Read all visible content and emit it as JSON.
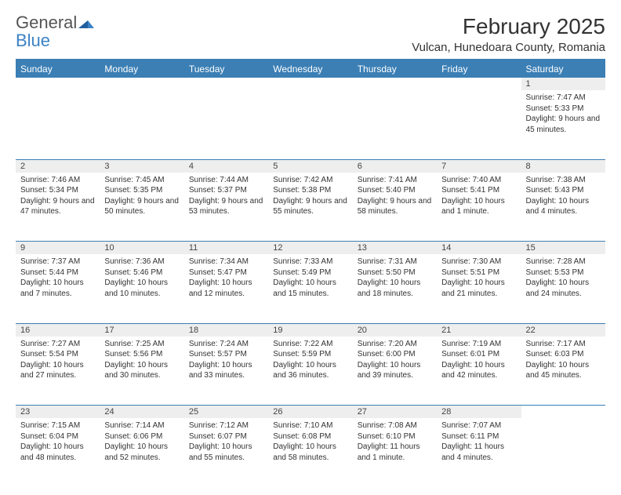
{
  "logo": {
    "word1": "General",
    "word2": "Blue"
  },
  "title": "February 2025",
  "location": "Vulcan, Hunedoara County, Romania",
  "colors": {
    "header_bg": "#3b7fb5",
    "header_text": "#ffffff",
    "line": "#3b7fb5",
    "daynum_bg": "#eeeeee",
    "text": "#333333",
    "logo_gray": "#555555",
    "logo_blue": "#3b82c4",
    "page_bg": "#ffffff"
  },
  "fonts": {
    "title_size_pt": 21,
    "location_size_pt": 11,
    "dayheader_size_pt": 9,
    "daynum_size_pt": 8,
    "body_size_pt": 7.5
  },
  "day_headers": [
    "Sunday",
    "Monday",
    "Tuesday",
    "Wednesday",
    "Thursday",
    "Friday",
    "Saturday"
  ],
  "weeks": [
    {
      "nums": [
        "",
        "",
        "",
        "",
        "",
        "",
        "1"
      ],
      "cells": [
        "",
        "",
        "",
        "",
        "",
        "",
        "Sunrise: 7:47 AM\nSunset: 5:33 PM\nDaylight: 9 hours and 45 minutes."
      ]
    },
    {
      "nums": [
        "2",
        "3",
        "4",
        "5",
        "6",
        "7",
        "8"
      ],
      "cells": [
        "Sunrise: 7:46 AM\nSunset: 5:34 PM\nDaylight: 9 hours and 47 minutes.",
        "Sunrise: 7:45 AM\nSunset: 5:35 PM\nDaylight: 9 hours and 50 minutes.",
        "Sunrise: 7:44 AM\nSunset: 5:37 PM\nDaylight: 9 hours and 53 minutes.",
        "Sunrise: 7:42 AM\nSunset: 5:38 PM\nDaylight: 9 hours and 55 minutes.",
        "Sunrise: 7:41 AM\nSunset: 5:40 PM\nDaylight: 9 hours and 58 minutes.",
        "Sunrise: 7:40 AM\nSunset: 5:41 PM\nDaylight: 10 hours and 1 minute.",
        "Sunrise: 7:38 AM\nSunset: 5:43 PM\nDaylight: 10 hours and 4 minutes."
      ]
    },
    {
      "nums": [
        "9",
        "10",
        "11",
        "12",
        "13",
        "14",
        "15"
      ],
      "cells": [
        "Sunrise: 7:37 AM\nSunset: 5:44 PM\nDaylight: 10 hours and 7 minutes.",
        "Sunrise: 7:36 AM\nSunset: 5:46 PM\nDaylight: 10 hours and 10 minutes.",
        "Sunrise: 7:34 AM\nSunset: 5:47 PM\nDaylight: 10 hours and 12 minutes.",
        "Sunrise: 7:33 AM\nSunset: 5:49 PM\nDaylight: 10 hours and 15 minutes.",
        "Sunrise: 7:31 AM\nSunset: 5:50 PM\nDaylight: 10 hours and 18 minutes.",
        "Sunrise: 7:30 AM\nSunset: 5:51 PM\nDaylight: 10 hours and 21 minutes.",
        "Sunrise: 7:28 AM\nSunset: 5:53 PM\nDaylight: 10 hours and 24 minutes."
      ]
    },
    {
      "nums": [
        "16",
        "17",
        "18",
        "19",
        "20",
        "21",
        "22"
      ],
      "cells": [
        "Sunrise: 7:27 AM\nSunset: 5:54 PM\nDaylight: 10 hours and 27 minutes.",
        "Sunrise: 7:25 AM\nSunset: 5:56 PM\nDaylight: 10 hours and 30 minutes.",
        "Sunrise: 7:24 AM\nSunset: 5:57 PM\nDaylight: 10 hours and 33 minutes.",
        "Sunrise: 7:22 AM\nSunset: 5:59 PM\nDaylight: 10 hours and 36 minutes.",
        "Sunrise: 7:20 AM\nSunset: 6:00 PM\nDaylight: 10 hours and 39 minutes.",
        "Sunrise: 7:19 AM\nSunset: 6:01 PM\nDaylight: 10 hours and 42 minutes.",
        "Sunrise: 7:17 AM\nSunset: 6:03 PM\nDaylight: 10 hours and 45 minutes."
      ]
    },
    {
      "nums": [
        "23",
        "24",
        "25",
        "26",
        "27",
        "28",
        ""
      ],
      "cells": [
        "Sunrise: 7:15 AM\nSunset: 6:04 PM\nDaylight: 10 hours and 48 minutes.",
        "Sunrise: 7:14 AM\nSunset: 6:06 PM\nDaylight: 10 hours and 52 minutes.",
        "Sunrise: 7:12 AM\nSunset: 6:07 PM\nDaylight: 10 hours and 55 minutes.",
        "Sunrise: 7:10 AM\nSunset: 6:08 PM\nDaylight: 10 hours and 58 minutes.",
        "Sunrise: 7:08 AM\nSunset: 6:10 PM\nDaylight: 11 hours and 1 minute.",
        "Sunrise: 7:07 AM\nSunset: 6:11 PM\nDaylight: 11 hours and 4 minutes.",
        ""
      ]
    }
  ]
}
